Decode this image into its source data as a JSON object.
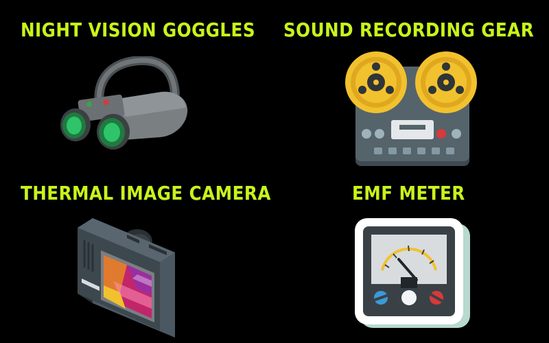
{
  "items": [
    {
      "label": "NIGHT VISION GOGGLES",
      "icon": "night-vision-goggles-icon"
    },
    {
      "label": "SOUND RECORDING GEAR",
      "icon": "reel-to-reel-recorder-icon"
    },
    {
      "label": "THERMAL IMAGE CAMERA",
      "icon": "thermal-camera-icon"
    },
    {
      "label": "EMF METER",
      "icon": "emf-meter-icon"
    }
  ],
  "colors": {
    "background": "#000000",
    "label": "#c8f51a",
    "reel": "#f2c12e",
    "device_gray": "#55636b",
    "lens_green": "#2fc46a"
  }
}
